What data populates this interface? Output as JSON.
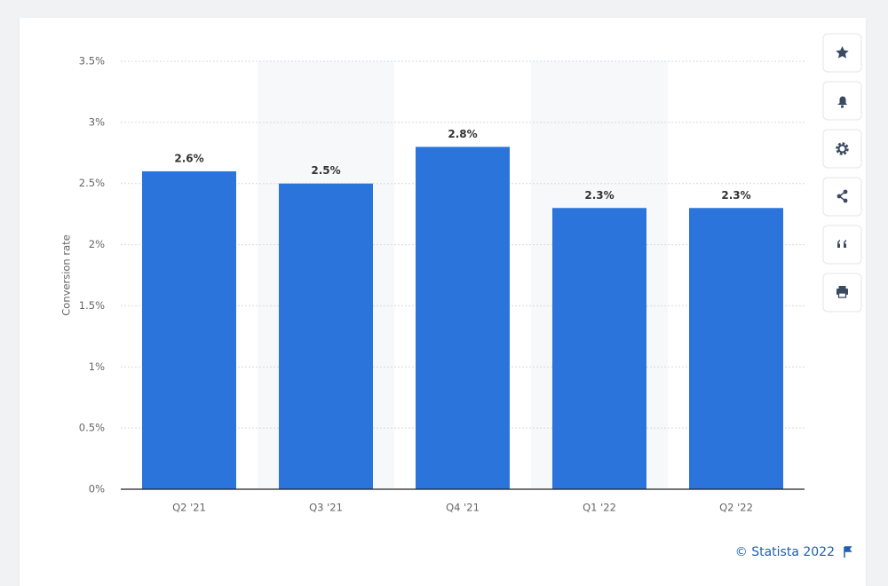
{
  "chart_data": {
    "type": "bar",
    "y_label": "Conversion rate",
    "source": "© Statista 2022",
    "categories": [
      "Q2 '21",
      "Q3 '21",
      "Q4 '21",
      "Q1 '22",
      "Q2 '22"
    ],
    "values": [
      2.6,
      2.5,
      2.8,
      2.3,
      2.3
    ],
    "value_labels": [
      "2.6%",
      "2.5%",
      "2.8%",
      "2.3%",
      "2.3%"
    ],
    "color": "#2a74dc",
    "ylim": [
      0,
      3.5
    ],
    "yticks": [
      {
        "value": 0,
        "label": "0%"
      },
      {
        "value": 0.5,
        "label": "0.5%"
      },
      {
        "value": 1,
        "label": "1%"
      },
      {
        "value": 1.5,
        "label": "1.5%"
      },
      {
        "value": 2,
        "label": "2%"
      },
      {
        "value": 2.5,
        "label": "2.5%"
      },
      {
        "value": 3,
        "label": "3%"
      },
      {
        "value": 3.5,
        "label": "3.5%"
      }
    ],
    "grid": true
  }
}
